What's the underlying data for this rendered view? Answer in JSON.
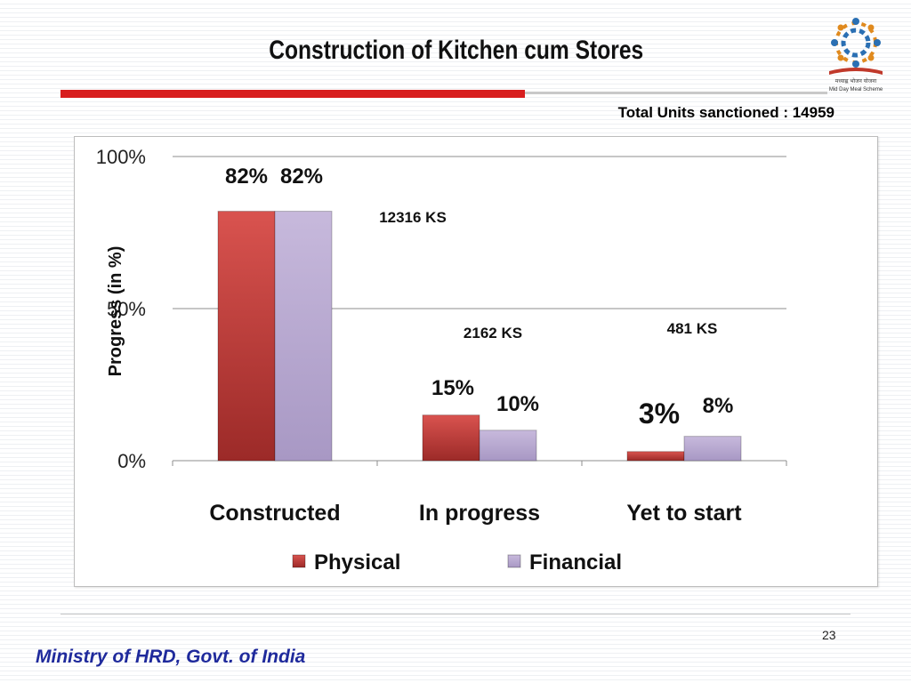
{
  "slide": {
    "title": "Construction of Kitchen cum Stores",
    "total_units_note": "Total Units sanctioned  : 14959",
    "page_number": "23",
    "footer": "Ministry of HRD, Govt. of India"
  },
  "logo": {
    "line1": "मध्याह्न भोजन योजना",
    "line2": "Mid Day Meal Scheme"
  },
  "colors": {
    "physical": "#c0393b",
    "financial": "#b9a8d2",
    "title_rule": "#d81e1e",
    "footer_text": "#1f2a9c"
  },
  "chart_data": {
    "type": "bar",
    "title": "",
    "ylabel": "Progress (in %)",
    "xlabel": "",
    "ylim": [
      0,
      100
    ],
    "yticks": [
      "0%",
      "50%",
      "100%"
    ],
    "grid": true,
    "legend_position": "bottom",
    "categories": [
      "Constructed",
      "In progress",
      "Yet to start"
    ],
    "series": [
      {
        "name": "Physical",
        "values": [
          82,
          15,
          3
        ],
        "labels": [
          "82%",
          "15%",
          "3%"
        ]
      },
      {
        "name": "Financial",
        "values": [
          82,
          10,
          8
        ],
        "labels": [
          "82%",
          "10%",
          "8%"
        ]
      }
    ],
    "annotations": [
      "12316 KS",
      "2162 KS",
      "481 KS"
    ]
  }
}
